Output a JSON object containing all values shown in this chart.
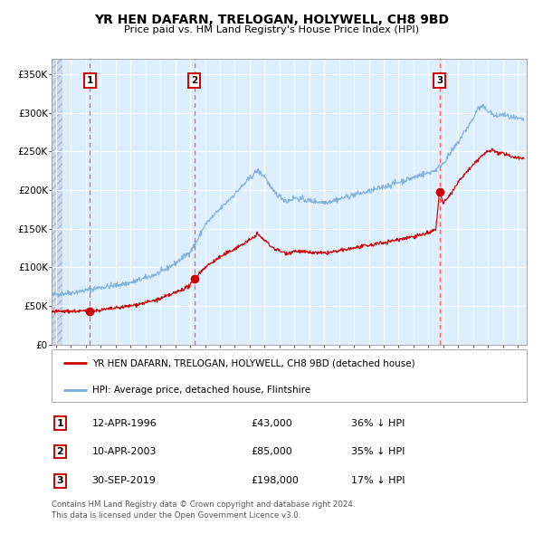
{
  "title": "YR HEN DAFARN, TRELOGAN, HOLYWELL, CH8 9BD",
  "subtitle": "Price paid vs. HM Land Registry's House Price Index (HPI)",
  "legend_property": "YR HEN DAFARN, TRELOGAN, HOLYWELL, CH8 9BD (detached house)",
  "legend_hpi": "HPI: Average price, detached house, Flintshire",
  "footer1": "Contains HM Land Registry data © Crown copyright and database right 2024.",
  "footer2": "This data is licensed under the Open Government Licence v3.0.",
  "sales": [
    {
      "num": 1,
      "date": "12-APR-1996",
      "price": 43000,
      "year": 1996.28,
      "pct": "36% ↓ HPI"
    },
    {
      "num": 2,
      "date": "10-APR-2003",
      "price": 85000,
      "year": 2003.28,
      "pct": "35% ↓ HPI"
    },
    {
      "num": 3,
      "date": "30-SEP-2019",
      "price": 198000,
      "year": 2019.75,
      "pct": "17% ↓ HPI"
    }
  ],
  "ylim": [
    0,
    370000
  ],
  "xlim_start": 1993.7,
  "xlim_end": 2025.6,
  "yticks": [
    0,
    50000,
    100000,
    150000,
    200000,
    250000,
    300000,
    350000
  ],
  "ytick_labels": [
    "£0",
    "£50K",
    "£100K",
    "£150K",
    "£200K",
    "£250K",
    "£300K",
    "£350K"
  ],
  "xticks": [
    1994,
    1995,
    1996,
    1997,
    1998,
    1999,
    2000,
    2001,
    2002,
    2003,
    2004,
    2005,
    2006,
    2007,
    2008,
    2009,
    2010,
    2011,
    2012,
    2013,
    2014,
    2015,
    2016,
    2017,
    2018,
    2019,
    2020,
    2021,
    2022,
    2023,
    2024,
    2025
  ],
  "bg_color": "#ddeeff",
  "grid_color": "#ffffff",
  "red_line_color": "#cc0000",
  "blue_line_color": "#7aacdc",
  "sale_marker_color": "#cc0000",
  "vline_color": "#ff5555",
  "box_edge_color": "#cc0000",
  "title_fontsize": 10,
  "subtitle_fontsize": 8.5
}
